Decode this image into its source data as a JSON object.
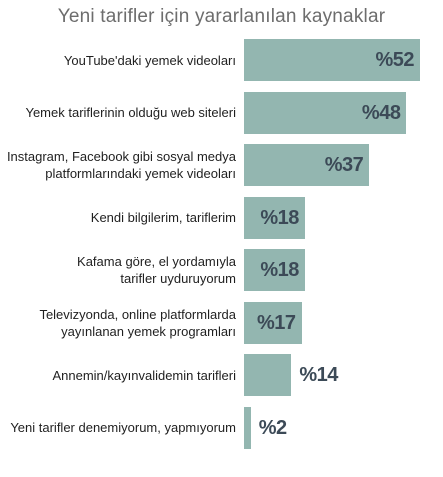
{
  "chart_data": {
    "type": "bar",
    "orientation": "horizontal",
    "title": "Yeni tarifler için yararlanılan kaynaklar",
    "categories": [
      "YouTube'daki yemek videoları",
      "Yemek tariflerinin olduğu web siteleri",
      "Instagram, Facebook gibi sosyal medya\nplatformlarındaki yemek videoları",
      "Kendi bilgilerim, tariflerim",
      "Kafama göre, el yordamıyla\ntarifler uyduruyorum",
      "Televizyonda, online platformlarda\nyayınlanan yemek programları",
      "Annemin/kayınvalidemin tarifleri",
      "Yeni tarifler denemiyorum, yapmıyorum"
    ],
    "values": [
      52,
      48,
      37,
      18,
      18,
      17,
      14,
      2
    ],
    "value_labels": [
      "%52",
      "%48",
      "%37",
      "%18",
      "%18",
      "%17",
      "%14",
      "%2"
    ],
    "xlim": [
      0,
      52
    ],
    "grid": false,
    "bar_color": "#93b6b0",
    "value_label_color": "#3c4a57"
  }
}
